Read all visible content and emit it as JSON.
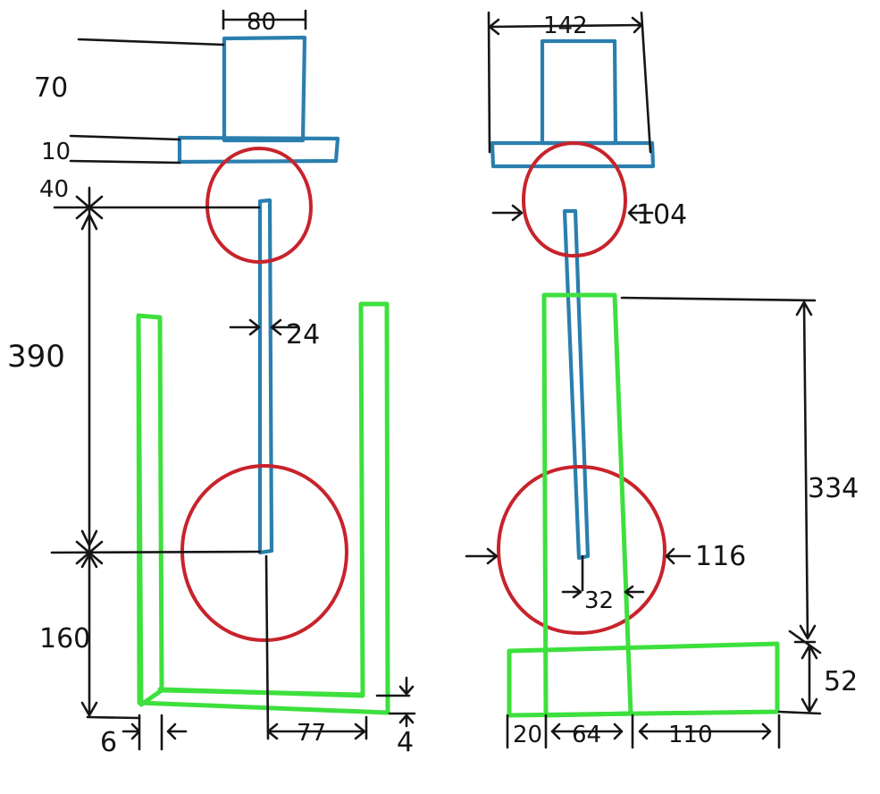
{
  "colors": {
    "ink": "#161616",
    "shaft": "#2a7fae",
    "ring": "#c8232c",
    "frame": "#3de03d",
    "background": "#ffffff"
  },
  "front_view": {
    "dim_cap_width": "80",
    "dim_cap_height": "70",
    "dim_plate_thickness": "10",
    "dim_gap": "40",
    "dim_shaft_length": "390",
    "dim_shaft_width": "24",
    "dim_base_height": "160",
    "dim_wall_thickness": "6",
    "dim_half_width": "77",
    "dim_floor_thickness": "4"
  },
  "side_view": {
    "dim_total_width": "142",
    "dim_small_ring": "104",
    "dim_large_ring": "116",
    "dim_shaft_width": "32",
    "dim_column_height": "334",
    "dim_foot_height": "52",
    "dim_offset": "20",
    "dim_column_width": "64",
    "dim_foot_extension": "110"
  }
}
